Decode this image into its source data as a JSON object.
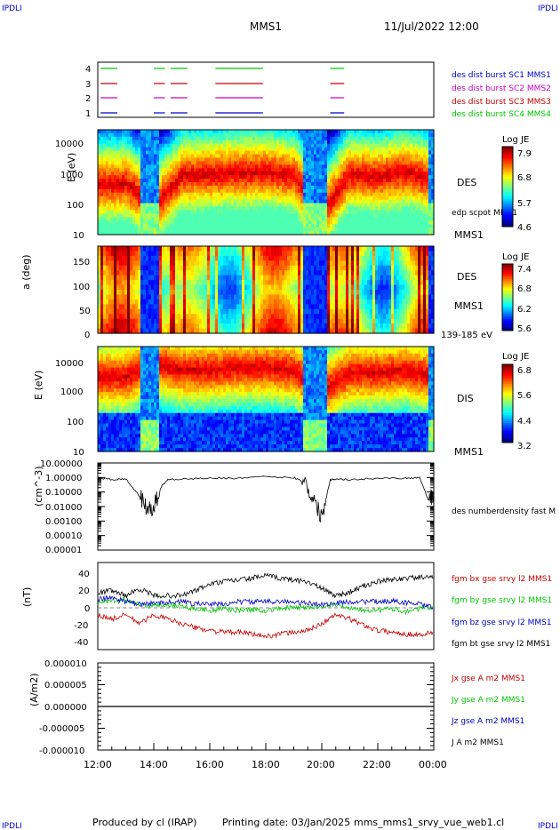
{
  "header": {
    "corner_left": "IPDLI",
    "corner_right": "IPDLI",
    "title": "MMS1",
    "datetime": "11/Jul/2022 12:00"
  },
  "footer": {
    "produced_by": "Produced by cl (IRAP)",
    "printing_date": "Printing date: 03/Jan/2025",
    "filename": "mms_mms1_srvy_vue_web1.cl",
    "corner_left": "IPDLI",
    "corner_right": "IPDLI"
  },
  "time_axis": {
    "ticks": [
      "12:00",
      "14:00",
      "16:00",
      "18:00",
      "20:00",
      "22:00",
      "00:00"
    ]
  },
  "colors": {
    "blue": "#0000c8",
    "magenta": "#c800c8",
    "red": "#c80000",
    "green": "#00c800",
    "black": "#000000"
  },
  "panel1": {
    "y_ticks": [
      "4",
      "3",
      "2",
      "1"
    ],
    "legend": [
      {
        "label": "des dist burst SC1 MMS1",
        "color": "#0000c8"
      },
      {
        "label": "des dist burst SC2 MMS2",
        "color": "#c800c8"
      },
      {
        "label": "des dist burst SC3 MMS3",
        "color": "#c80000"
      },
      {
        "label": "des dist burst SC4 MMS4",
        "color": "#00c800"
      }
    ]
  },
  "panel2": {
    "ylabel": "E (eV)",
    "y_ticks": [
      "10000",
      "1000",
      "100",
      "10"
    ],
    "instrument": "DES",
    "sc_label": "MMS1",
    "overlay_label": "edp scpot MMS1",
    "colorbar": {
      "title": "Log JE",
      "ticks": [
        "7.9",
        "6.8",
        "5.7",
        "4.6"
      ]
    }
  },
  "panel3": {
    "ylabel": "a (deg)",
    "y_ticks": [
      "150",
      "100",
      "50",
      "0"
    ],
    "instrument": "DES",
    "sc_label": "MMS1",
    "energy_range": "139-185 eV",
    "colorbar": {
      "title": "Log JE",
      "ticks": [
        "7.4",
        "6.8",
        "6.2",
        "5.6"
      ]
    }
  },
  "panel4": {
    "ylabel": "E (eV)",
    "y_ticks": [
      "10000",
      "1000",
      "100",
      "10"
    ],
    "instrument": "DIS",
    "sc_label": "MMS1",
    "colorbar": {
      "title": "Log JE",
      "ticks": [
        "6.8",
        "5.6",
        "4.4",
        "3.2"
      ]
    }
  },
  "panel5": {
    "ylabel": "(cm^-3)",
    "y_ticks": [
      "10.00000",
      "1.00000",
      "0.10000",
      "0.01000",
      "0.00100",
      "0.00010",
      "0.00001"
    ],
    "legend": "des numberdensity fast M"
  },
  "panel6": {
    "ylabel": "(nT)",
    "y_ticks": [
      "40",
      "20",
      "0",
      "-20",
      "-40"
    ],
    "legend": [
      {
        "label": "fgm bx gse srvy l2 MMS1",
        "color": "#c80000"
      },
      {
        "label": "fgm by gse srvy l2 MMS1",
        "color": "#00c800"
      },
      {
        "label": "fgm bz gse srvy l2 MMS1",
        "color": "#0000c8"
      },
      {
        "label": "fgm bt gse srvy l2 MMS1",
        "color": "#000000"
      }
    ]
  },
  "panel7": {
    "ylabel": "(A/m2)",
    "y_ticks": [
      "0.000010",
      "0.000005",
      "0.000000",
      "-0.000005",
      "-0.000010"
    ],
    "legend": [
      {
        "label": "Jx gse A m2 MMS1",
        "color": "#c80000"
      },
      {
        "label": "Jy gse A m2 MMS1",
        "color": "#00c800"
      },
      {
        "label": "Jz gse A m2 MMS1",
        "color": "#0000c8"
      },
      {
        "label": "J A m2 MMS1",
        "color": "#000000"
      }
    ]
  },
  "chart_data": [
    {
      "type": "line",
      "panel": "burst availability",
      "x_unit": "hours since 12:00 UT",
      "series": [
        {
          "name": "des dist burst SC1 MMS1",
          "y": 1,
          "segments": [
            [
              0.1,
              0.7
            ],
            [
              2.0,
              2.4
            ],
            [
              2.6,
              3.2
            ],
            [
              4.2,
              5.9
            ],
            [
              8.3,
              8.8
            ]
          ]
        },
        {
          "name": "des dist burst SC2 MMS2",
          "y": 2,
          "segments": [
            [
              0.1,
              0.7
            ],
            [
              2.0,
              2.4
            ],
            [
              2.6,
              3.2
            ],
            [
              4.2,
              5.9
            ],
            [
              8.3,
              8.8
            ]
          ]
        },
        {
          "name": "des dist burst SC3 MMS3",
          "y": 3,
          "segments": [
            [
              0.1,
              0.7
            ],
            [
              2.0,
              2.4
            ],
            [
              2.6,
              3.2
            ],
            [
              4.2,
              5.9
            ],
            [
              8.3,
              8.8
            ]
          ]
        },
        {
          "name": "des dist burst SC4 MMS4",
          "y": 4,
          "segments": [
            [
              0.1,
              0.7
            ],
            [
              2.0,
              2.4
            ],
            [
              2.6,
              3.2
            ],
            [
              4.2,
              5.9
            ],
            [
              8.3,
              8.8
            ]
          ]
        }
      ]
    },
    {
      "type": "heatmap",
      "panel": "DES energy spectrogram",
      "x": [
        "12:00",
        "13:00",
        "14:00",
        "15:00",
        "16:00",
        "17:00",
        "18:00",
        "19:00",
        "20:00",
        "21:00",
        "22:00",
        "23:00",
        "00:00"
      ],
      "ylim_eV": [
        10,
        30000
      ],
      "peak_energy_eV": [
        450,
        500,
        80,
        900,
        1000,
        1100,
        1200,
        900,
        50,
        1000,
        800,
        1200,
        600
      ],
      "colorbar_range": [
        4.6,
        7.9
      ]
    },
    {
      "type": "heatmap",
      "panel": "DES pitch angle (139-185 eV)",
      "ylim_deg": [
        0,
        180
      ],
      "colorbar_range": [
        5.6,
        7.4
      ]
    },
    {
      "type": "heatmap",
      "panel": "DIS energy spectrogram",
      "ylim_eV": [
        10,
        30000
      ],
      "peak_energy_eV": [
        3000,
        3000,
        8000,
        5000,
        5000,
        6000,
        6000,
        5000,
        1000,
        4000,
        4000,
        5000,
        3000
      ],
      "colorbar_range": [
        3.2,
        6.8
      ]
    },
    {
      "type": "line",
      "panel": "density",
      "yscale": "log",
      "ylim": [
        1e-05,
        10
      ],
      "x": [
        0,
        0.5,
        1.0,
        1.5,
        1.8,
        2.0,
        2.3,
        2.5,
        3.0,
        4.0,
        5.0,
        6.0,
        7.0,
        7.4,
        7.7,
        8.0,
        8.3,
        8.5,
        9.0,
        10.0,
        11.0,
        11.5,
        11.8,
        12.0
      ],
      "series": [
        {
          "name": "des numberdensity fast M",
          "values": [
            1.0,
            0.7,
            0.8,
            0.05,
            0.005,
            0.01,
            0.3,
            0.7,
            0.8,
            0.9,
            0.9,
            1.1,
            1.0,
            0.5,
            0.03,
            0.002,
            0.7,
            0.8,
            0.7,
            0.9,
            0.9,
            1.0,
            0.03,
            0.05
          ]
        }
      ]
    },
    {
      "type": "line",
      "panel": "magnetic field GSE",
      "ylim": [
        -50,
        50
      ],
      "x": [
        0,
        0.5,
        1,
        1.5,
        2,
        2.5,
        3,
        3.5,
        4,
        4.5,
        5,
        5.5,
        6,
        6.5,
        7,
        7.5,
        8,
        8.5,
        9,
        9.5,
        10,
        10.5,
        11,
        11.5,
        12
      ],
      "series": [
        {
          "name": "fgm bx gse srvy l2 MMS1",
          "values": [
            -10,
            -15,
            -10,
            -20,
            -10,
            -15,
            -20,
            -25,
            -28,
            -30,
            -30,
            -32,
            -35,
            -32,
            -30,
            -28,
            -20,
            -10,
            -15,
            -22,
            -28,
            -30,
            -32,
            -33,
            -30
          ]
        },
        {
          "name": "fgm by gse srvy l2 MMS1",
          "values": [
            5,
            5,
            8,
            2,
            0,
            2,
            0,
            -3,
            -5,
            -3,
            -5,
            -4,
            -5,
            -3,
            -2,
            -2,
            0,
            2,
            -2,
            -4,
            -5,
            -3,
            -6,
            -3,
            -2
          ]
        },
        {
          "name": "fgm bz gse srvy l2 MMS1",
          "values": [
            8,
            10,
            5,
            2,
            3,
            5,
            5,
            3,
            2,
            2,
            5,
            5,
            5,
            6,
            4,
            3,
            2,
            3,
            5,
            5,
            5,
            6,
            4,
            2,
            -2
          ]
        },
        {
          "name": "fgm bt gse srvy l2 MMS1",
          "values": [
            15,
            18,
            12,
            20,
            12,
            12,
            12,
            18,
            25,
            28,
            30,
            32,
            35,
            32,
            30,
            28,
            20,
            12,
            16,
            23,
            28,
            30,
            32,
            33,
            32
          ]
        }
      ]
    },
    {
      "type": "line",
      "panel": "current density",
      "ylim": [
        -1e-05,
        1e-05
      ],
      "series": [
        {
          "name": "Jx gse A m2 MMS1",
          "values": [
            0,
            0
          ]
        },
        {
          "name": "Jy gse A m2 MMS1",
          "values": [
            0,
            0
          ]
        },
        {
          "name": "Jz gse A m2 MMS1",
          "values": [
            0,
            0
          ]
        },
        {
          "name": "J A m2 MMS1",
          "values": [
            0,
            0
          ]
        }
      ]
    }
  ]
}
